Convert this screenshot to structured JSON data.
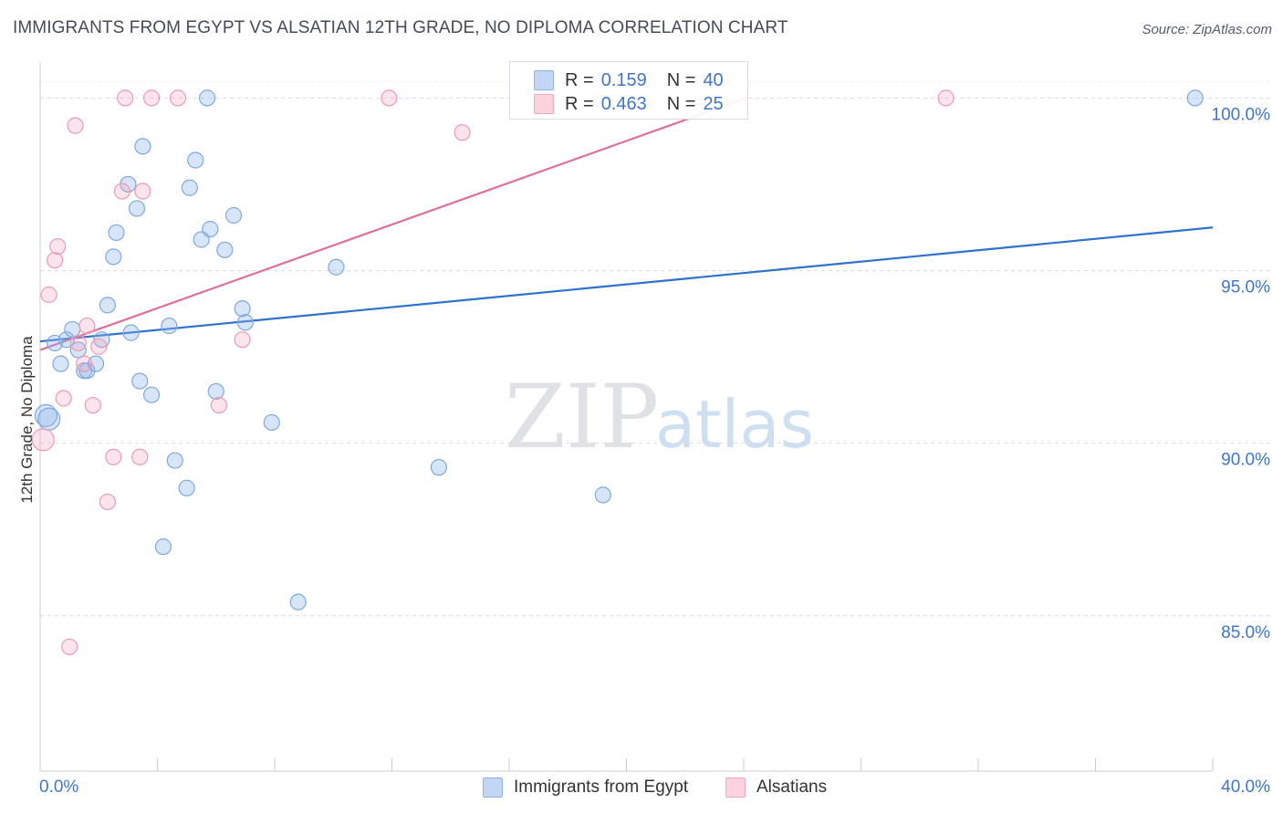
{
  "title": "IMMIGRANTS FROM EGYPT VS ALSATIAN 12TH GRADE, NO DIPLOMA CORRELATION CHART",
  "source": "Source: ZipAtlas.com",
  "watermark": {
    "zip": "ZIP",
    "atlas": "atlas"
  },
  "colors": {
    "egypt": "#8cb4ea",
    "egypt_line": "#2f72cc",
    "alsatian": "#f3a7bf",
    "alsatian_line": "#e06f96",
    "axis_text": "#3f76c8",
    "grid": "#d8dce2"
  },
  "legend_top": {
    "rows": [
      {
        "r_label": "R =",
        "r_value": "0.159",
        "n_label": "N =",
        "n_value": "40"
      },
      {
        "r_label": "R =",
        "r_value": "0.463",
        "n_label": "N =",
        "n_value": "25"
      }
    ]
  },
  "chart_data": {
    "type": "scatter",
    "title": "IMMIGRANTS FROM EGYPT VS ALSATIAN 12TH GRADE, NO DIPLOMA CORRELATION CHART",
    "xlabel": "",
    "ylabel": "12th Grade, No Diploma",
    "xlim": [
      0,
      40
    ],
    "ylim": [
      80.5,
      101.2
    ],
    "x_tick_labels": [
      "0.0%",
      "40.0%"
    ],
    "y_ticks": [
      85,
      90,
      95,
      100
    ],
    "y_tick_labels": [
      "85.0%",
      "90.0%",
      "95.0%",
      "100.0%"
    ],
    "grid": true,
    "legend_position": "bottom",
    "series": [
      {
        "name": "Immigrants from Egypt",
        "r": 0.159,
        "n": 40,
        "trend": {
          "x0": 0,
          "y0": 92.95,
          "x1": 40,
          "y1": 96.25
        },
        "points": [
          {
            "x": 0.2,
            "y": 90.8
          },
          {
            "x": 0.3,
            "y": 90.7
          },
          {
            "x": 0.5,
            "y": 92.9
          },
          {
            "x": 0.7,
            "y": 92.3
          },
          {
            "x": 0.9,
            "y": 93.0
          },
          {
            "x": 1.1,
            "y": 93.3
          },
          {
            "x": 1.3,
            "y": 92.7
          },
          {
            "x": 1.5,
            "y": 92.1
          },
          {
            "x": 1.6,
            "y": 92.1
          },
          {
            "x": 1.9,
            "y": 92.3
          },
          {
            "x": 2.1,
            "y": 93.0
          },
          {
            "x": 2.3,
            "y": 94.0
          },
          {
            "x": 2.5,
            "y": 95.4
          },
          {
            "x": 2.6,
            "y": 96.1
          },
          {
            "x": 3.0,
            "y": 97.5
          },
          {
            "x": 3.1,
            "y": 93.2
          },
          {
            "x": 3.3,
            "y": 96.8
          },
          {
            "x": 3.4,
            "y": 91.8
          },
          {
            "x": 3.5,
            "y": 98.6
          },
          {
            "x": 3.8,
            "y": 91.4
          },
          {
            "x": 4.2,
            "y": 87.0
          },
          {
            "x": 4.4,
            "y": 93.4
          },
          {
            "x": 4.6,
            "y": 89.5
          },
          {
            "x": 5.0,
            "y": 88.7
          },
          {
            "x": 5.1,
            "y": 97.4
          },
          {
            "x": 5.3,
            "y": 98.2
          },
          {
            "x": 5.5,
            "y": 95.9
          },
          {
            "x": 5.7,
            "y": 100.0
          },
          {
            "x": 5.8,
            "y": 96.2
          },
          {
            "x": 6.0,
            "y": 91.5
          },
          {
            "x": 6.3,
            "y": 95.6
          },
          {
            "x": 6.6,
            "y": 96.6
          },
          {
            "x": 6.9,
            "y": 93.9
          },
          {
            "x": 7.0,
            "y": 93.5
          },
          {
            "x": 7.9,
            "y": 90.6
          },
          {
            "x": 8.8,
            "y": 85.4
          },
          {
            "x": 10.1,
            "y": 95.1
          },
          {
            "x": 13.6,
            "y": 89.3
          },
          {
            "x": 19.2,
            "y": 88.5
          },
          {
            "x": 39.4,
            "y": 100.0
          }
        ]
      },
      {
        "name": "Alsatians",
        "r": 0.463,
        "n": 25,
        "trend": {
          "x0": 0,
          "y0": 92.7,
          "x1": 24.1,
          "y1": 100.0
        },
        "points": [
          {
            "x": 0.1,
            "y": 90.1
          },
          {
            "x": 0.3,
            "y": 94.3
          },
          {
            "x": 0.5,
            "y": 95.3
          },
          {
            "x": 0.6,
            "y": 95.7
          },
          {
            "x": 0.8,
            "y": 91.3
          },
          {
            "x": 1.0,
            "y": 84.1
          },
          {
            "x": 1.2,
            "y": 99.2
          },
          {
            "x": 1.3,
            "y": 92.9
          },
          {
            "x": 1.5,
            "y": 92.3
          },
          {
            "x": 1.6,
            "y": 93.4
          },
          {
            "x": 1.8,
            "y": 91.1
          },
          {
            "x": 2.0,
            "y": 92.8
          },
          {
            "x": 2.3,
            "y": 88.3
          },
          {
            "x": 2.5,
            "y": 89.6
          },
          {
            "x": 2.8,
            "y": 97.3
          },
          {
            "x": 2.9,
            "y": 100.0
          },
          {
            "x": 3.4,
            "y": 89.6
          },
          {
            "x": 3.5,
            "y": 97.3
          },
          {
            "x": 4.7,
            "y": 100.0
          },
          {
            "x": 6.1,
            "y": 91.1
          },
          {
            "x": 6.9,
            "y": 93.0
          },
          {
            "x": 11.9,
            "y": 100.0
          },
          {
            "x": 14.4,
            "y": 99.0
          },
          {
            "x": 30.9,
            "y": 100.0
          },
          {
            "x": 3.8,
            "y": 100.0
          }
        ]
      }
    ]
  }
}
